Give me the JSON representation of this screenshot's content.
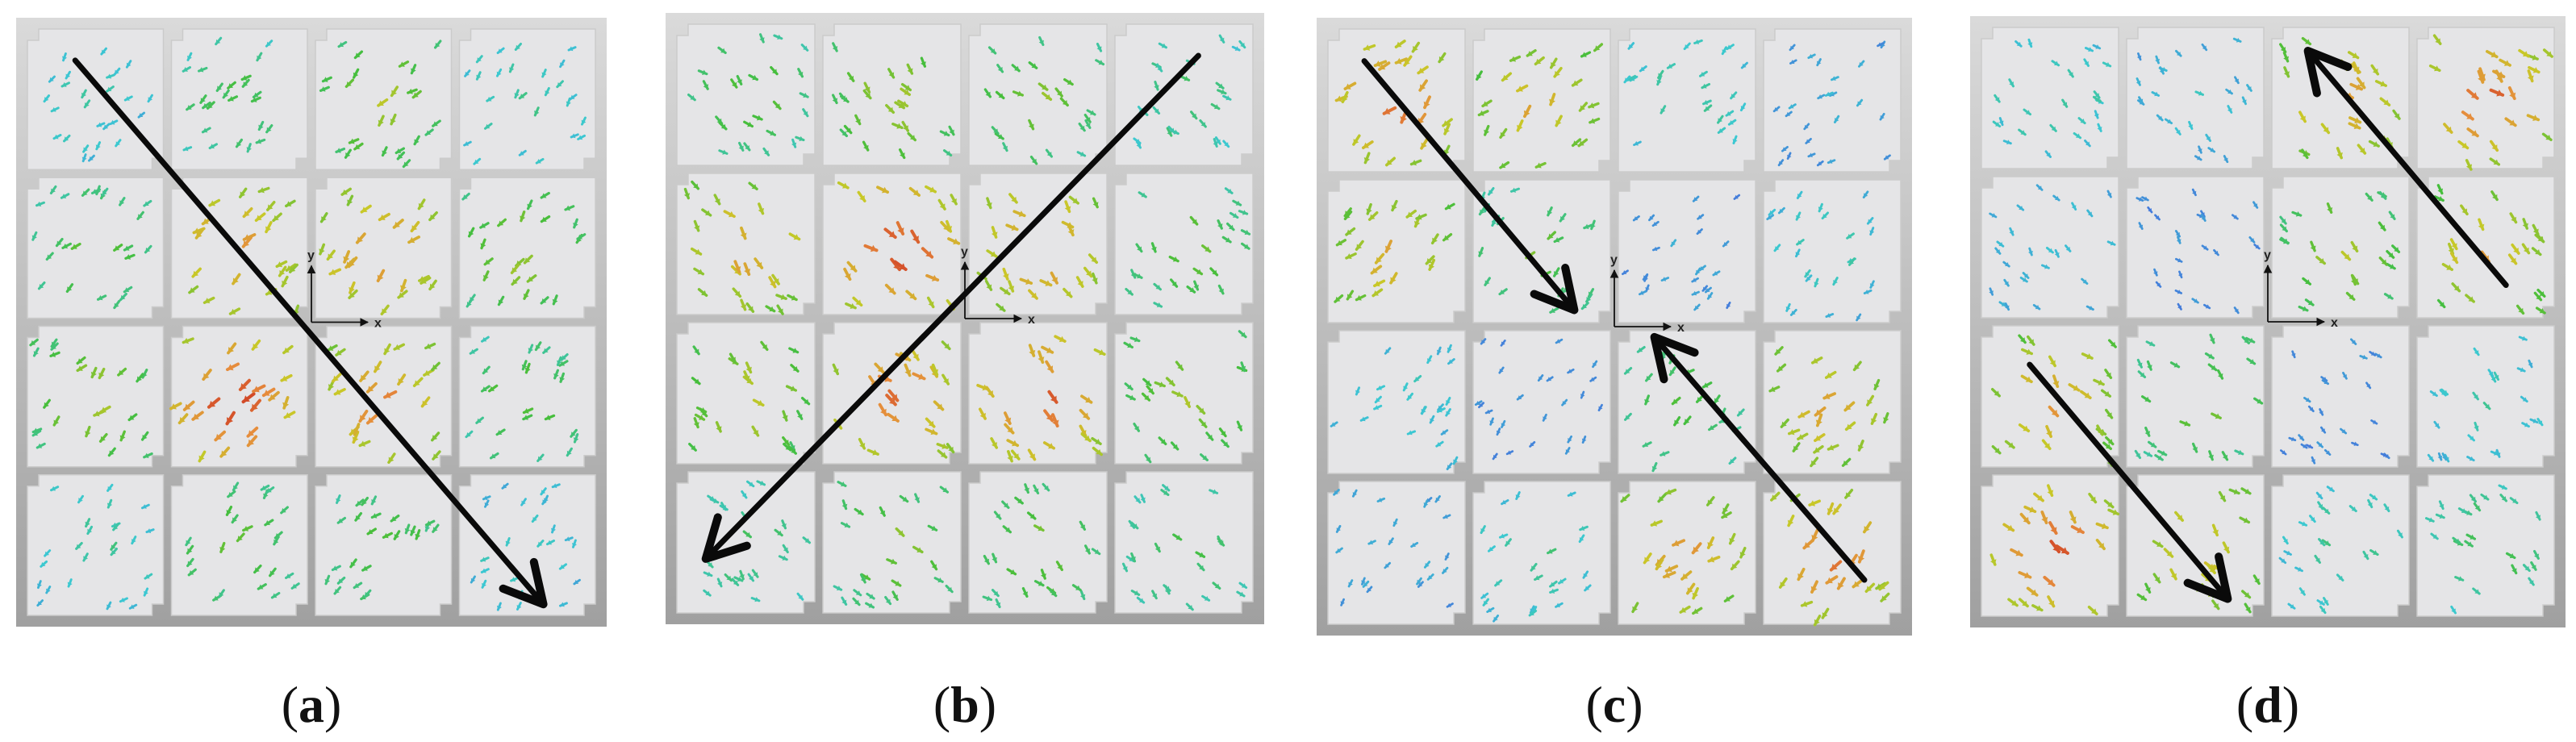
{
  "panels": [
    {
      "id": "a",
      "caption_open": "(",
      "caption_letter": "a",
      "caption_close": ")",
      "axis_x_label": "x",
      "axis_y_label": "y",
      "intensity": [
        [
          0.25,
          0.4,
          0.55,
          0.3
        ],
        [
          0.45,
          0.8,
          0.8,
          0.55
        ],
        [
          0.55,
          0.95,
          0.8,
          0.45
        ],
        [
          0.3,
          0.45,
          0.45,
          0.25
        ]
      ],
      "arrow_direction": "top-left to bottom-right"
    },
    {
      "id": "b",
      "caption_open": "(",
      "caption_letter": "b",
      "caption_close": ")",
      "axis_x_label": "x",
      "axis_y_label": "y",
      "intensity": [
        [
          0.45,
          0.55,
          0.5,
          0.35
        ],
        [
          0.75,
          0.95,
          0.8,
          0.45
        ],
        [
          0.6,
          0.85,
          0.9,
          0.55
        ],
        [
          0.35,
          0.5,
          0.5,
          0.4
        ]
      ],
      "arrow_direction": "top-right to bottom-left"
    },
    {
      "id": "c",
      "caption_open": "(",
      "caption_letter": "c",
      "caption_close": ")",
      "axis_x_label": "x",
      "axis_y_label": "y",
      "intensity": [
        [
          0.85,
          0.7,
          0.3,
          0.15
        ],
        [
          0.7,
          0.45,
          0.12,
          0.25
        ],
        [
          0.25,
          0.1,
          0.45,
          0.7
        ],
        [
          0.15,
          0.3,
          0.75,
          0.85
        ]
      ],
      "arrow_direction": "two arrows converging toward center"
    },
    {
      "id": "d",
      "caption_open": "(",
      "caption_letter": "d",
      "caption_close": ")",
      "axis_x_label": "x",
      "axis_y_label": "y",
      "intensity": [
        [
          0.3,
          0.2,
          0.75,
          0.85
        ],
        [
          0.2,
          0.1,
          0.55,
          0.7
        ],
        [
          0.75,
          0.5,
          0.1,
          0.25
        ],
        [
          0.9,
          0.7,
          0.3,
          0.4
        ]
      ],
      "arrow_direction": "two arrows diverging from center"
    }
  ],
  "colors": {
    "background": "#ffffff",
    "panel_top": "#d9d9d9",
    "panel_bottom": "#a3a3a3",
    "cell_fill": "#e6e6e6",
    "cell_stroke": "#c9c9c9",
    "arrow": "#0a0a0a",
    "axis": "#111111"
  }
}
